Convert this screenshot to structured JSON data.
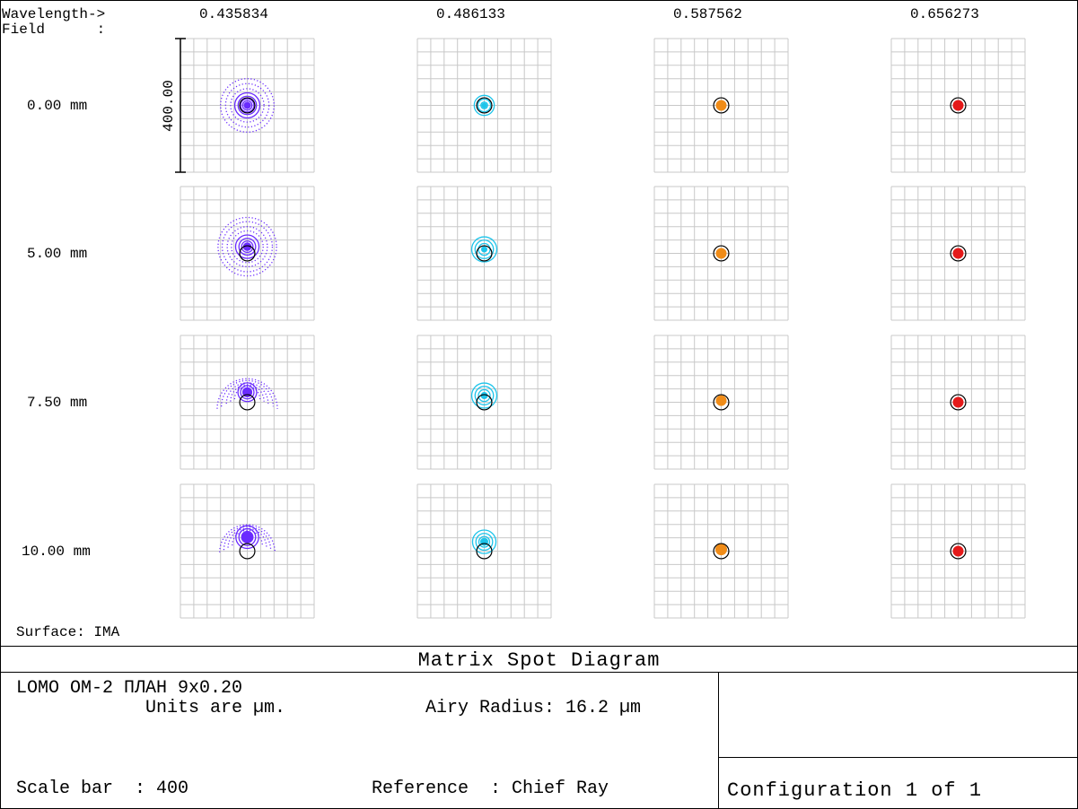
{
  "header": {
    "wavelength_label": "Wavelength->",
    "field_label": "Field      :"
  },
  "chart_data": {
    "type": "scatter",
    "title": "Matrix Spot Diagram",
    "wavelengths": [
      "0.435834",
      "0.486133",
      "0.587562",
      "0.656273"
    ],
    "fields": [
      "0.00 mm",
      "5.00 mm",
      "7.50 mm",
      "10.00 mm"
    ],
    "units": "µm",
    "scale_bar": 400,
    "scale_bar_label": "400.00",
    "airy_radius": 16.2,
    "reference": "Chief Ray",
    "surface": "IMA",
    "grid": true,
    "series_colors": [
      "#6a2bff",
      "#1cc4ea",
      "#f08c18",
      "#e41a1a"
    ],
    "spots": [
      [
        {
          "cx": 0,
          "cy": 0,
          "rings": [
            160,
            130,
            100,
            75,
            55,
            40,
            28,
            18,
            10
          ],
          "core": 6,
          "shape": "full"
        },
        {
          "cx": 0,
          "cy": 0,
          "rings": [
            60,
            38,
            20
          ],
          "core": 5,
          "shape": "full"
        },
        {
          "cx": 0,
          "cy": 0,
          "rings": [
            18
          ],
          "core": 11,
          "shape": "full"
        },
        {
          "cx": 0,
          "cy": 0,
          "rings": [
            18
          ],
          "core": 11,
          "shape": "full"
        }
      ],
      [
        {
          "cx": 0,
          "cy": -20,
          "rings": [
            175,
            150,
            120,
            95,
            70,
            50,
            34,
            22,
            12
          ],
          "core": 8,
          "shape": "full"
        },
        {
          "cx": 0,
          "cy": -12,
          "rings": [
            75,
            55,
            35
          ],
          "core": 6,
          "shape": "arc"
        },
        {
          "cx": 0,
          "cy": 0,
          "rings": [
            14
          ],
          "core": 11,
          "shape": "full"
        },
        {
          "cx": 0,
          "cy": 0,
          "rings": [
            15
          ],
          "core": 11,
          "shape": "full"
        }
      ],
      [
        {
          "cx": 0,
          "cy": -30,
          "rings": [
            180,
            155,
            125,
            100,
            76,
            56,
            40,
            26,
            14
          ],
          "core": 10,
          "shape": "arc"
        },
        {
          "cx": 0,
          "cy": -20,
          "rings": [
            75,
            55,
            35
          ],
          "core": 7,
          "shape": "arc"
        },
        {
          "cx": 0,
          "cy": -5,
          "rings": [
            16
          ],
          "core": 11,
          "shape": "full"
        },
        {
          "cx": 0,
          "cy": 0,
          "rings": [
            14
          ],
          "core": 11,
          "shape": "full"
        }
      ],
      [
        {
          "cx": 0,
          "cy": -42,
          "rings": [
            165,
            140,
            115,
            90,
            68,
            50,
            34,
            22,
            12
          ],
          "core": 11,
          "shape": "arc"
        },
        {
          "cx": 0,
          "cy": -28,
          "rings": [
            70,
            50,
            32
          ],
          "core": 8,
          "shape": "arc"
        },
        {
          "cx": 0,
          "cy": -5,
          "rings": [
            18
          ],
          "core": 12,
          "shape": "arc"
        },
        {
          "cx": 0,
          "cy": 0,
          "rings": [
            14
          ],
          "core": 11,
          "shape": "full"
        }
      ]
    ]
  },
  "footer": {
    "surface_text": "Surface: IMA",
    "title": "Matrix Spot Diagram",
    "system_name": "LOMO OM-2 ПЛАН 9x0.20",
    "units_text": "Units are µm.",
    "airy_text": "Airy Radius: 16.2 µm",
    "scale_text": "Scale bar  : 400",
    "reference_text": "Reference  : Chief Ray",
    "configuration_text": "Configuration 1 of 1"
  }
}
